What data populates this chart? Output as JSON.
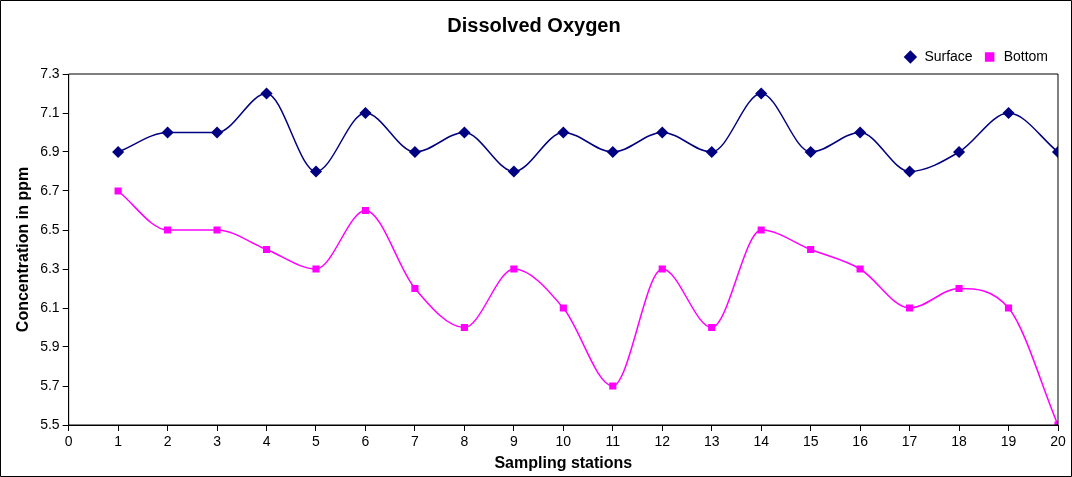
{
  "chart_data": {
    "type": "line",
    "title": "Dissolved Oxygen",
    "xlabel": "Sampling stations",
    "ylabel": "Concentration in ppm",
    "x": [
      1,
      2,
      3,
      4,
      5,
      6,
      7,
      8,
      9,
      10,
      11,
      12,
      13,
      14,
      15,
      16,
      17,
      18,
      19,
      20
    ],
    "series": [
      {
        "name": "Surface",
        "color": "#000080",
        "marker": "diamond",
        "values": [
          6.9,
          7.0,
          7.0,
          7.2,
          6.8,
          7.1,
          6.9,
          7.0,
          6.8,
          7.0,
          6.9,
          7.0,
          6.9,
          7.2,
          6.9,
          7.0,
          6.8,
          6.9,
          7.1,
          6.9
        ]
      },
      {
        "name": "Bottom",
        "color": "#ff00ff",
        "marker": "square",
        "values": [
          6.7,
          6.5,
          6.5,
          6.4,
          6.3,
          6.6,
          6.2,
          6.0,
          6.3,
          6.1,
          5.7,
          6.3,
          6.0,
          6.5,
          6.4,
          6.3,
          6.1,
          6.2,
          6.1,
          5.5
        ]
      }
    ],
    "xlim": [
      0,
      20
    ],
    "xticks": [
      0,
      1,
      2,
      3,
      4,
      5,
      6,
      7,
      8,
      9,
      10,
      11,
      12,
      13,
      14,
      15,
      16,
      17,
      18,
      19,
      20
    ],
    "ylim": [
      5.5,
      7.3
    ],
    "yticks": [
      {
        "value": 5.5,
        "label": "5.5"
      },
      {
        "value": 5.7,
        "label": "5.7"
      },
      {
        "value": 5.9,
        "label": "5.9"
      },
      {
        "value": 6.1,
        "label": "6.1"
      },
      {
        "value": 6.3,
        "label": "6.3"
      },
      {
        "value": 6.5,
        "label": "6.5"
      },
      {
        "value": 6.7,
        "label": "6.7"
      },
      {
        "value": 6.9,
        "label": "6.9"
      },
      {
        "value": 7.1,
        "label": "7.1"
      },
      {
        "value": 7.3,
        "label": "7.3"
      }
    ],
    "grid": false,
    "legend": "top right",
    "line_style": "solid"
  }
}
